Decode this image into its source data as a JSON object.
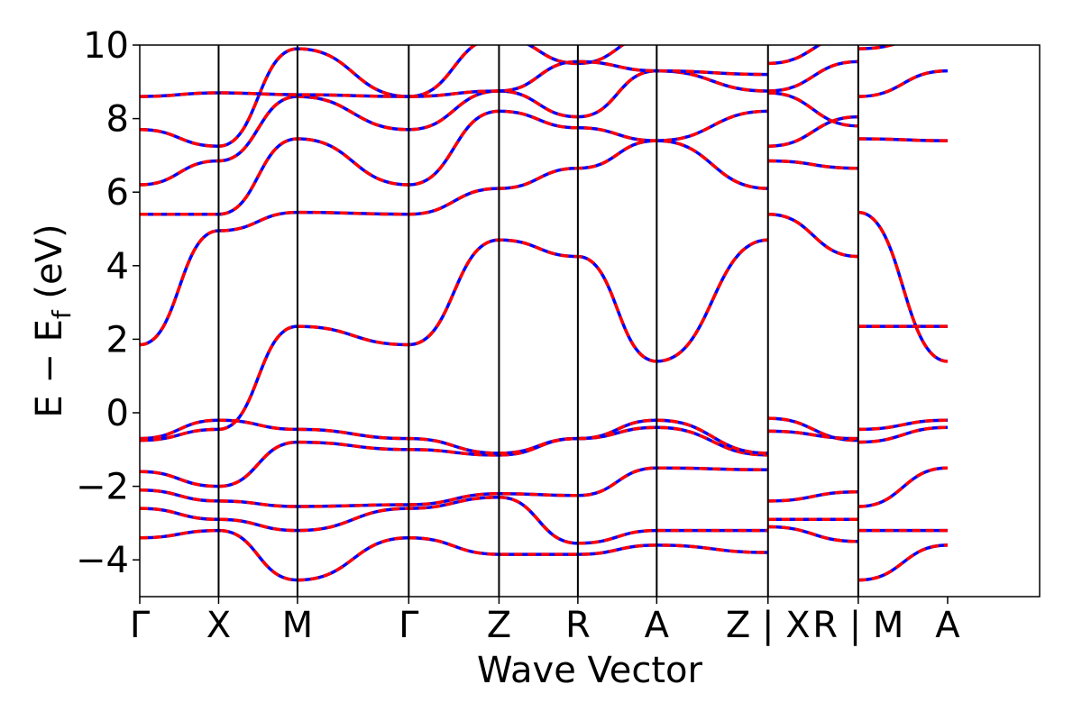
{
  "chart_data": {
    "type": "line",
    "title": "",
    "xlabel": "Wave Vector",
    "ylabel": "E − E_f (eV)",
    "ylabel_main": "E − E",
    "ylabel_sub": "f",
    "ylabel_unit": " (eV)",
    "ylim": [
      -5,
      10
    ],
    "yticks": [
      -4,
      -2,
      0,
      2,
      4,
      6,
      8,
      10
    ],
    "ytick_labels": [
      "−4",
      "−2",
      "0",
      "2",
      "4",
      "6",
      "8",
      "10"
    ],
    "xlim": [
      0,
      10.27
    ],
    "grid": false,
    "legend": "none",
    "colors": {
      "band_primary": "#ff0000",
      "band_reference": "#0000ff",
      "axis": "#000000"
    },
    "high_symmetry_points": [
      {
        "x": 0.0,
        "label": "Γ"
      },
      {
        "x": 0.9,
        "label": "X"
      },
      {
        "x": 1.8,
        "label": "M"
      },
      {
        "x": 3.07,
        "label": "Γ"
      },
      {
        "x": 4.1,
        "label": "Z"
      },
      {
        "x": 5.0,
        "label": "R"
      },
      {
        "x": 5.9,
        "label": "A"
      },
      {
        "x": 7.17,
        "label": "Z | X"
      },
      {
        "x": 8.2,
        "label": "R | M"
      },
      {
        "x": 9.22,
        "label": "A"
      }
    ],
    "bands": [
      {
        "name": "band-a",
        "points": [
          [
            0,
            -3.4
          ],
          [
            0.9,
            -3.2
          ],
          [
            1.8,
            -4.55
          ],
          [
            3.07,
            -3.4
          ],
          [
            4.1,
            -3.85
          ],
          [
            5.0,
            -3.85
          ],
          [
            5.9,
            -3.6
          ],
          [
            7.17,
            -3.8
          ],
          [
            7.17,
            -3.1
          ],
          [
            8.2,
            -3.5
          ],
          [
            8.2,
            -4.55
          ],
          [
            9.22,
            -3.6
          ]
        ]
      },
      {
        "name": "band-b",
        "points": [
          [
            0,
            -2.6
          ],
          [
            0.9,
            -2.9
          ],
          [
            1.8,
            -3.2
          ],
          [
            3.07,
            -2.6
          ],
          [
            4.1,
            -2.3
          ],
          [
            5.0,
            -3.55
          ],
          [
            5.9,
            -3.2
          ],
          [
            7.17,
            -3.2
          ],
          [
            7.17,
            -2.9
          ],
          [
            8.2,
            -2.9
          ],
          [
            8.2,
            -3.2
          ],
          [
            9.22,
            -3.2
          ]
        ]
      },
      {
        "name": "band-c",
        "points": [
          [
            0,
            -2.1
          ],
          [
            0.9,
            -2.4
          ],
          [
            1.8,
            -2.55
          ],
          [
            3.07,
            -2.5
          ],
          [
            4.1,
            -2.2
          ],
          [
            5.0,
            -2.25
          ],
          [
            5.9,
            -1.5
          ],
          [
            7.17,
            -1.55
          ],
          [
            7.17,
            -2.4
          ],
          [
            8.2,
            -2.15
          ],
          [
            8.2,
            -2.55
          ],
          [
            9.22,
            -1.5
          ]
        ]
      },
      {
        "name": "band-d",
        "points": [
          [
            0,
            -1.6
          ],
          [
            0.9,
            -2.0
          ],
          [
            1.8,
            -0.8
          ],
          [
            3.07,
            -1.0
          ],
          [
            4.1,
            -1.15
          ],
          [
            5.0,
            -0.7
          ],
          [
            5.9,
            -0.4
          ],
          [
            7.17,
            -1.15
          ],
          [
            7.17,
            -0.15
          ],
          [
            8.2,
            -0.75
          ],
          [
            8.2,
            -0.8
          ],
          [
            9.22,
            -0.4
          ]
        ]
      },
      {
        "name": "band-e",
        "points": [
          [
            0,
            -0.7
          ],
          [
            0.9,
            -0.2
          ],
          [
            1.8,
            -0.45
          ],
          [
            3.07,
            -0.7
          ],
          [
            4.1,
            -1.1
          ],
          [
            5.0,
            -0.7
          ],
          [
            5.9,
            -0.2
          ],
          [
            7.17,
            -1.1
          ],
          [
            7.17,
            -0.5
          ],
          [
            8.2,
            -0.7
          ],
          [
            8.2,
            -0.45
          ],
          [
            9.22,
            -0.2
          ]
        ]
      },
      {
        "name": "band-f",
        "points": [
          [
            0,
            -0.75
          ],
          [
            0.9,
            -0.45
          ],
          [
            1.8,
            2.35
          ],
          [
            3.07,
            1.85
          ],
          [
            4.1,
            4.7
          ],
          [
            5.0,
            4.25
          ],
          [
            5.9,
            1.4
          ],
          [
            7.17,
            4.7
          ],
          [
            7.17,
            5.4
          ],
          [
            8.2,
            4.25
          ],
          [
            8.2,
            5.45
          ],
          [
            9.22,
            1.4
          ]
        ]
      },
      {
        "name": "band-g",
        "points": [
          [
            0,
            1.85
          ],
          [
            0.9,
            4.95
          ],
          [
            1.8,
            5.45
          ],
          [
            3.07,
            5.4
          ],
          [
            4.1,
            6.1
          ],
          [
            5.0,
            6.65
          ],
          [
            5.9,
            7.4
          ],
          [
            7.17,
            6.1
          ],
          [
            7.17,
            6.85
          ],
          [
            8.2,
            6.65
          ],
          [
            8.2,
            2.35
          ],
          [
            9.22,
            2.35
          ]
        ]
      },
      {
        "name": "band-h",
        "points": [
          [
            0,
            5.4
          ],
          [
            0.9,
            5.4
          ],
          [
            1.8,
            7.45
          ],
          [
            3.07,
            6.2
          ],
          [
            4.1,
            8.2
          ],
          [
            5.0,
            7.75
          ],
          [
            5.9,
            7.4
          ],
          [
            7.17,
            8.2
          ],
          [
            7.17,
            7.25
          ],
          [
            8.2,
            8.05
          ],
          [
            8.2,
            7.45
          ],
          [
            9.22,
            7.4
          ]
        ]
      },
      {
        "name": "band-i",
        "points": [
          [
            0,
            6.2
          ],
          [
            0.9,
            6.85
          ],
          [
            1.8,
            8.6
          ],
          [
            3.07,
            7.7
          ],
          [
            4.1,
            8.75
          ],
          [
            5.0,
            8.05
          ],
          [
            5.9,
            9.3
          ],
          [
            7.17,
            8.75
          ],
          [
            7.17,
            8.75
          ],
          [
            8.2,
            9.55
          ],
          [
            8.2,
            8.6
          ],
          [
            9.22,
            9.3
          ]
        ]
      },
      {
        "name": "band-j",
        "points": [
          [
            0,
            7.7
          ],
          [
            0.9,
            7.25
          ],
          [
            1.8,
            9.9
          ],
          [
            3.07,
            8.6
          ],
          [
            4.1,
            10.2
          ],
          [
            5.0,
            9.5
          ],
          [
            5.9,
            10.3
          ],
          [
            7.17,
            10.3
          ],
          [
            7.17,
            9.5
          ],
          [
            8.2,
            10.3
          ],
          [
            8.2,
            9.9
          ],
          [
            9.22,
            10.3
          ]
        ]
      },
      {
        "name": "band-k",
        "points": [
          [
            0,
            8.6
          ],
          [
            0.9,
            8.7
          ],
          [
            1.8,
            8.65
          ],
          [
            3.07,
            8.6
          ],
          [
            4.1,
            8.75
          ],
          [
            5.0,
            9.55
          ],
          [
            5.9,
            9.3
          ],
          [
            7.17,
            9.2
          ],
          [
            7.17,
            8.7
          ],
          [
            8.2,
            7.8
          ],
          [
            8.2,
            10.3
          ],
          [
            9.22,
            10.3
          ]
        ]
      }
    ]
  }
}
